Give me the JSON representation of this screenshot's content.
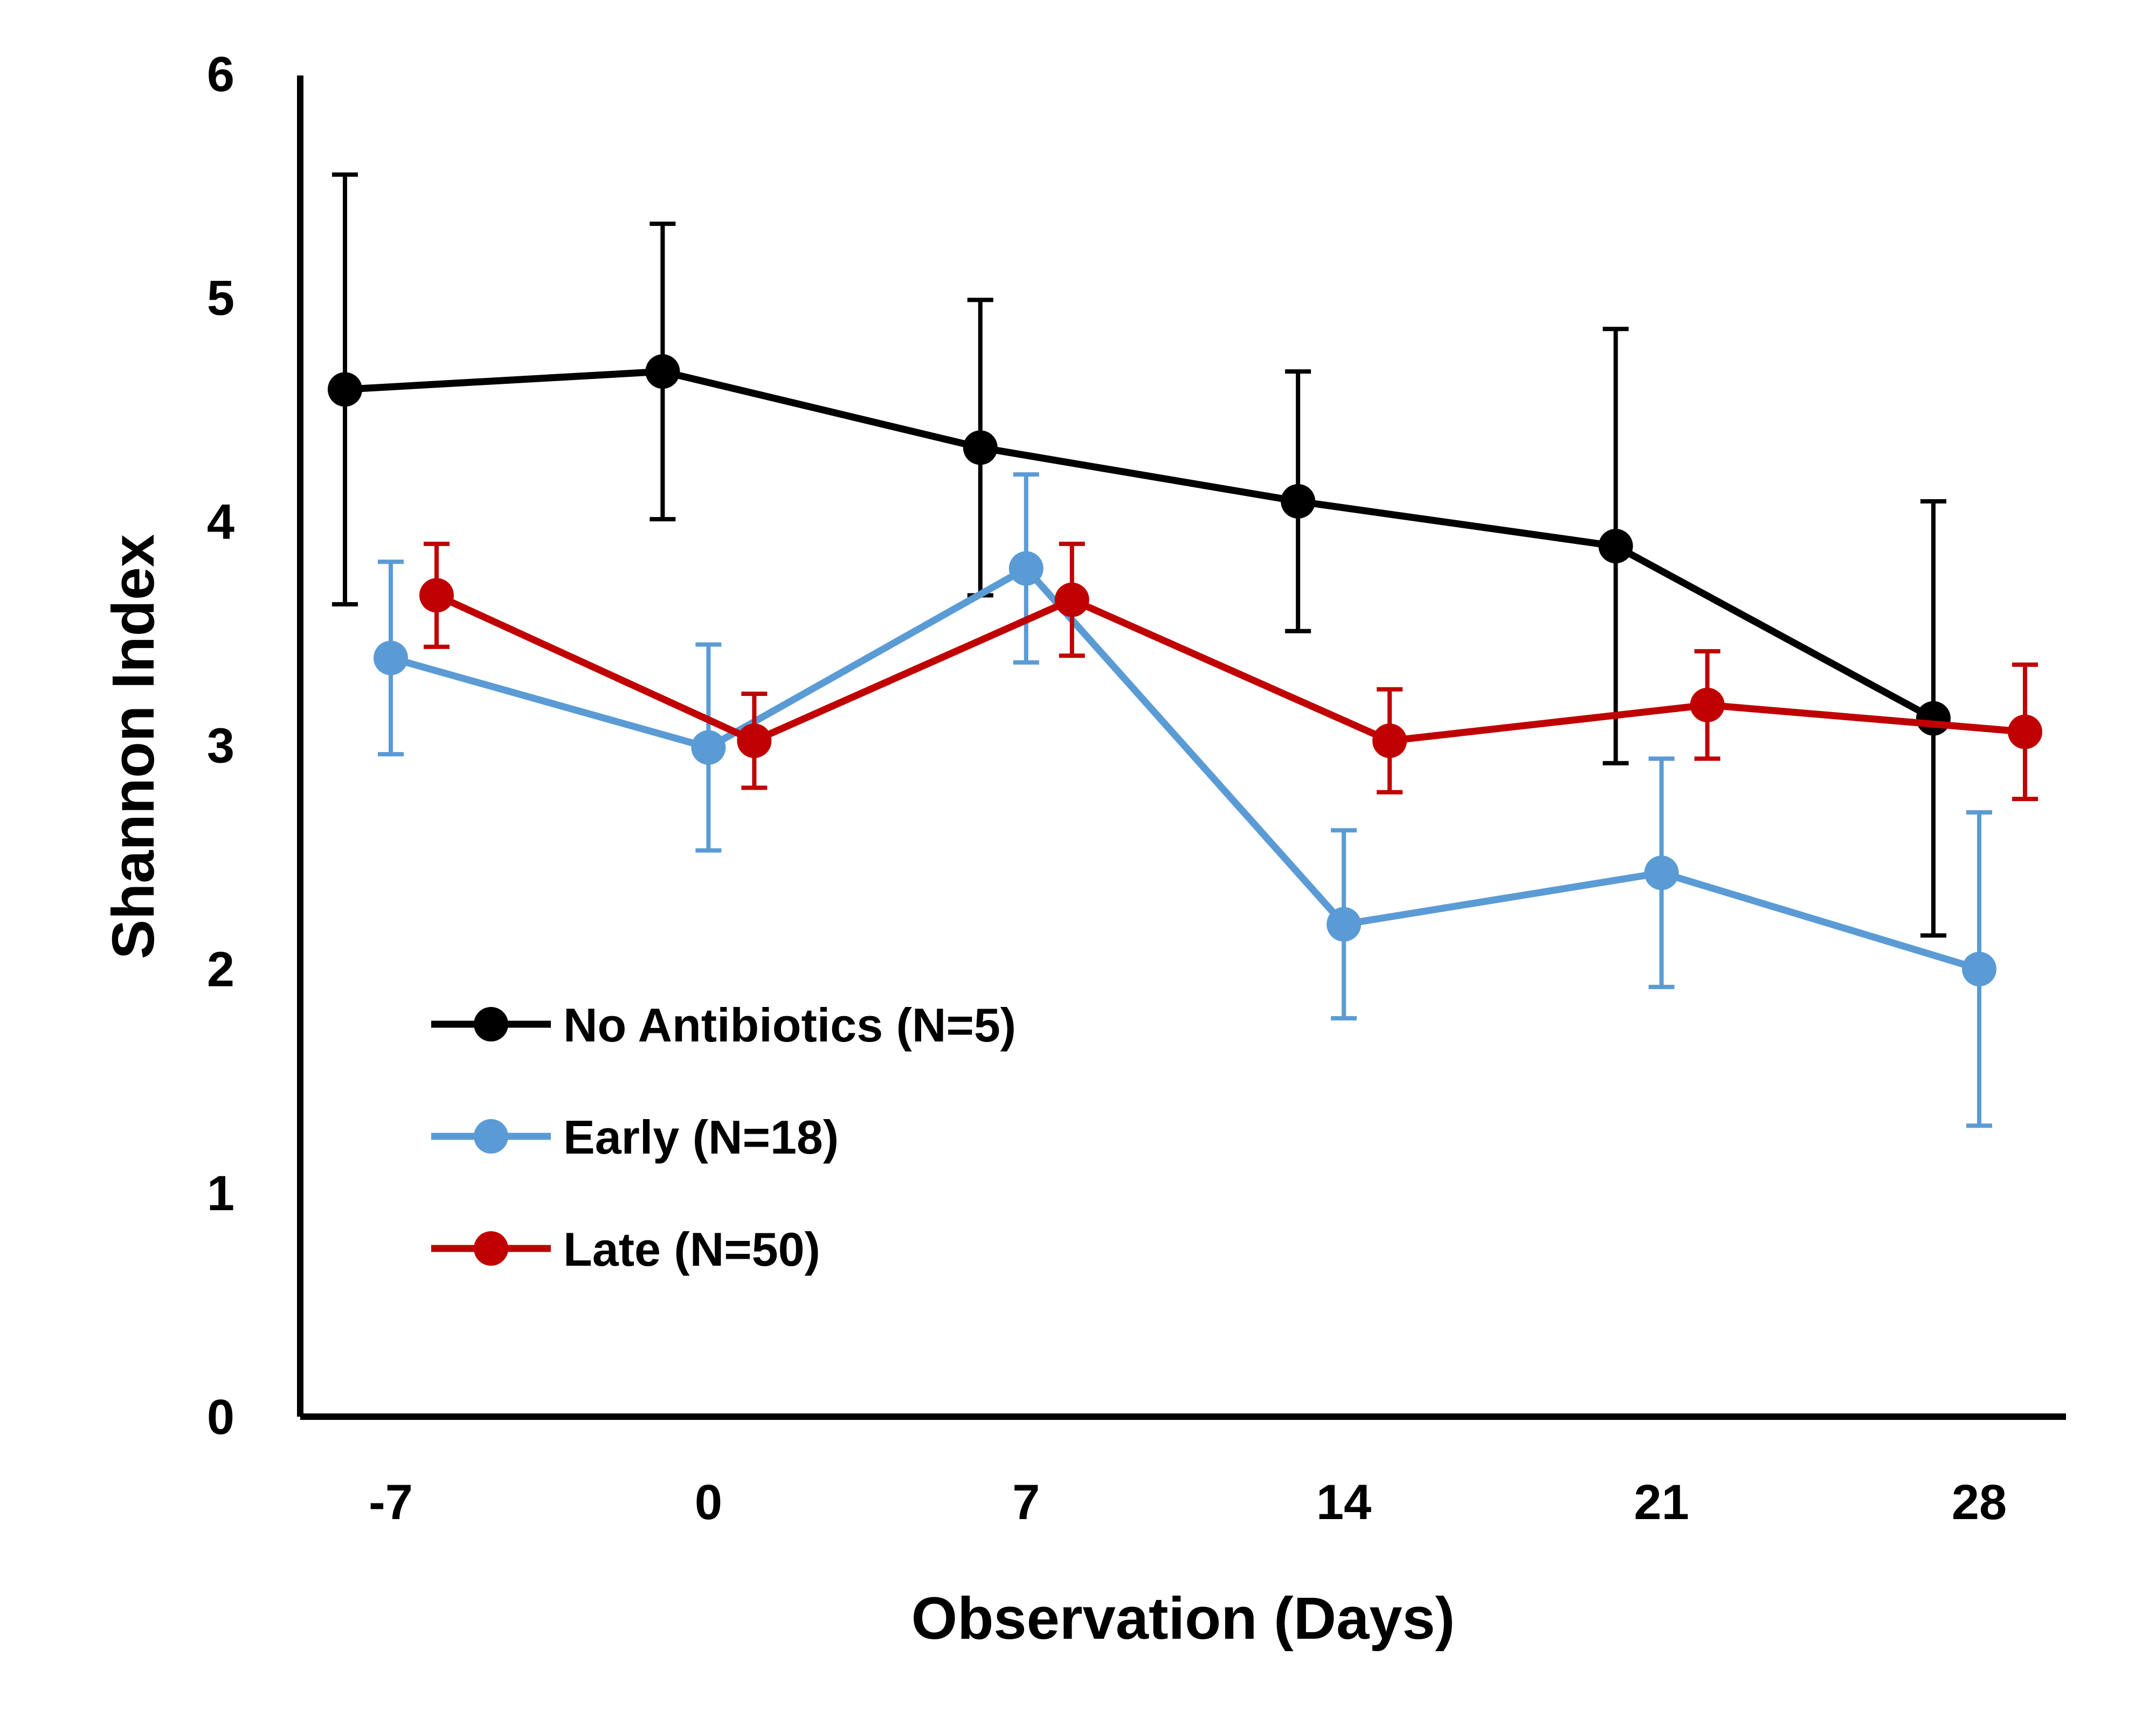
{
  "chart_data": {
    "type": "line",
    "title": "",
    "xlabel": "Observation (Days)",
    "ylabel": "Shannon Index",
    "x": [
      -7,
      0,
      7,
      14,
      21,
      28
    ],
    "x_tick_labels": [
      "-7",
      "0",
      "7",
      "14",
      "21",
      "28"
    ],
    "y_tick_labels": [
      "0",
      "1",
      "2",
      "3",
      "4",
      "5",
      "6"
    ],
    "ylim": [
      0,
      6
    ],
    "grid": false,
    "legend_position": "bottom-left",
    "series": [
      {
        "name": "No Antibiotics (N=5)",
        "color": "#000000",
        "values": [
          4.59,
          4.67,
          4.33,
          4.09,
          3.89,
          3.12
        ],
        "errors": [
          0.96,
          0.66,
          0.66,
          0.58,
          0.97,
          0.97
        ]
      },
      {
        "name": "Early (N=18)",
        "color": "#5b9bd5",
        "values": [
          3.39,
          2.99,
          3.79,
          2.2,
          2.43,
          2.0
        ],
        "errors": [
          0.43,
          0.46,
          0.42,
          0.42,
          0.51,
          0.7
        ]
      },
      {
        "name": "Late (N=50)",
        "color": "#c00000",
        "values": [
          3.67,
          3.02,
          3.65,
          3.02,
          3.18,
          3.06
        ],
        "errors": [
          0.23,
          0.21,
          0.25,
          0.23,
          0.24,
          0.3
        ]
      }
    ]
  }
}
